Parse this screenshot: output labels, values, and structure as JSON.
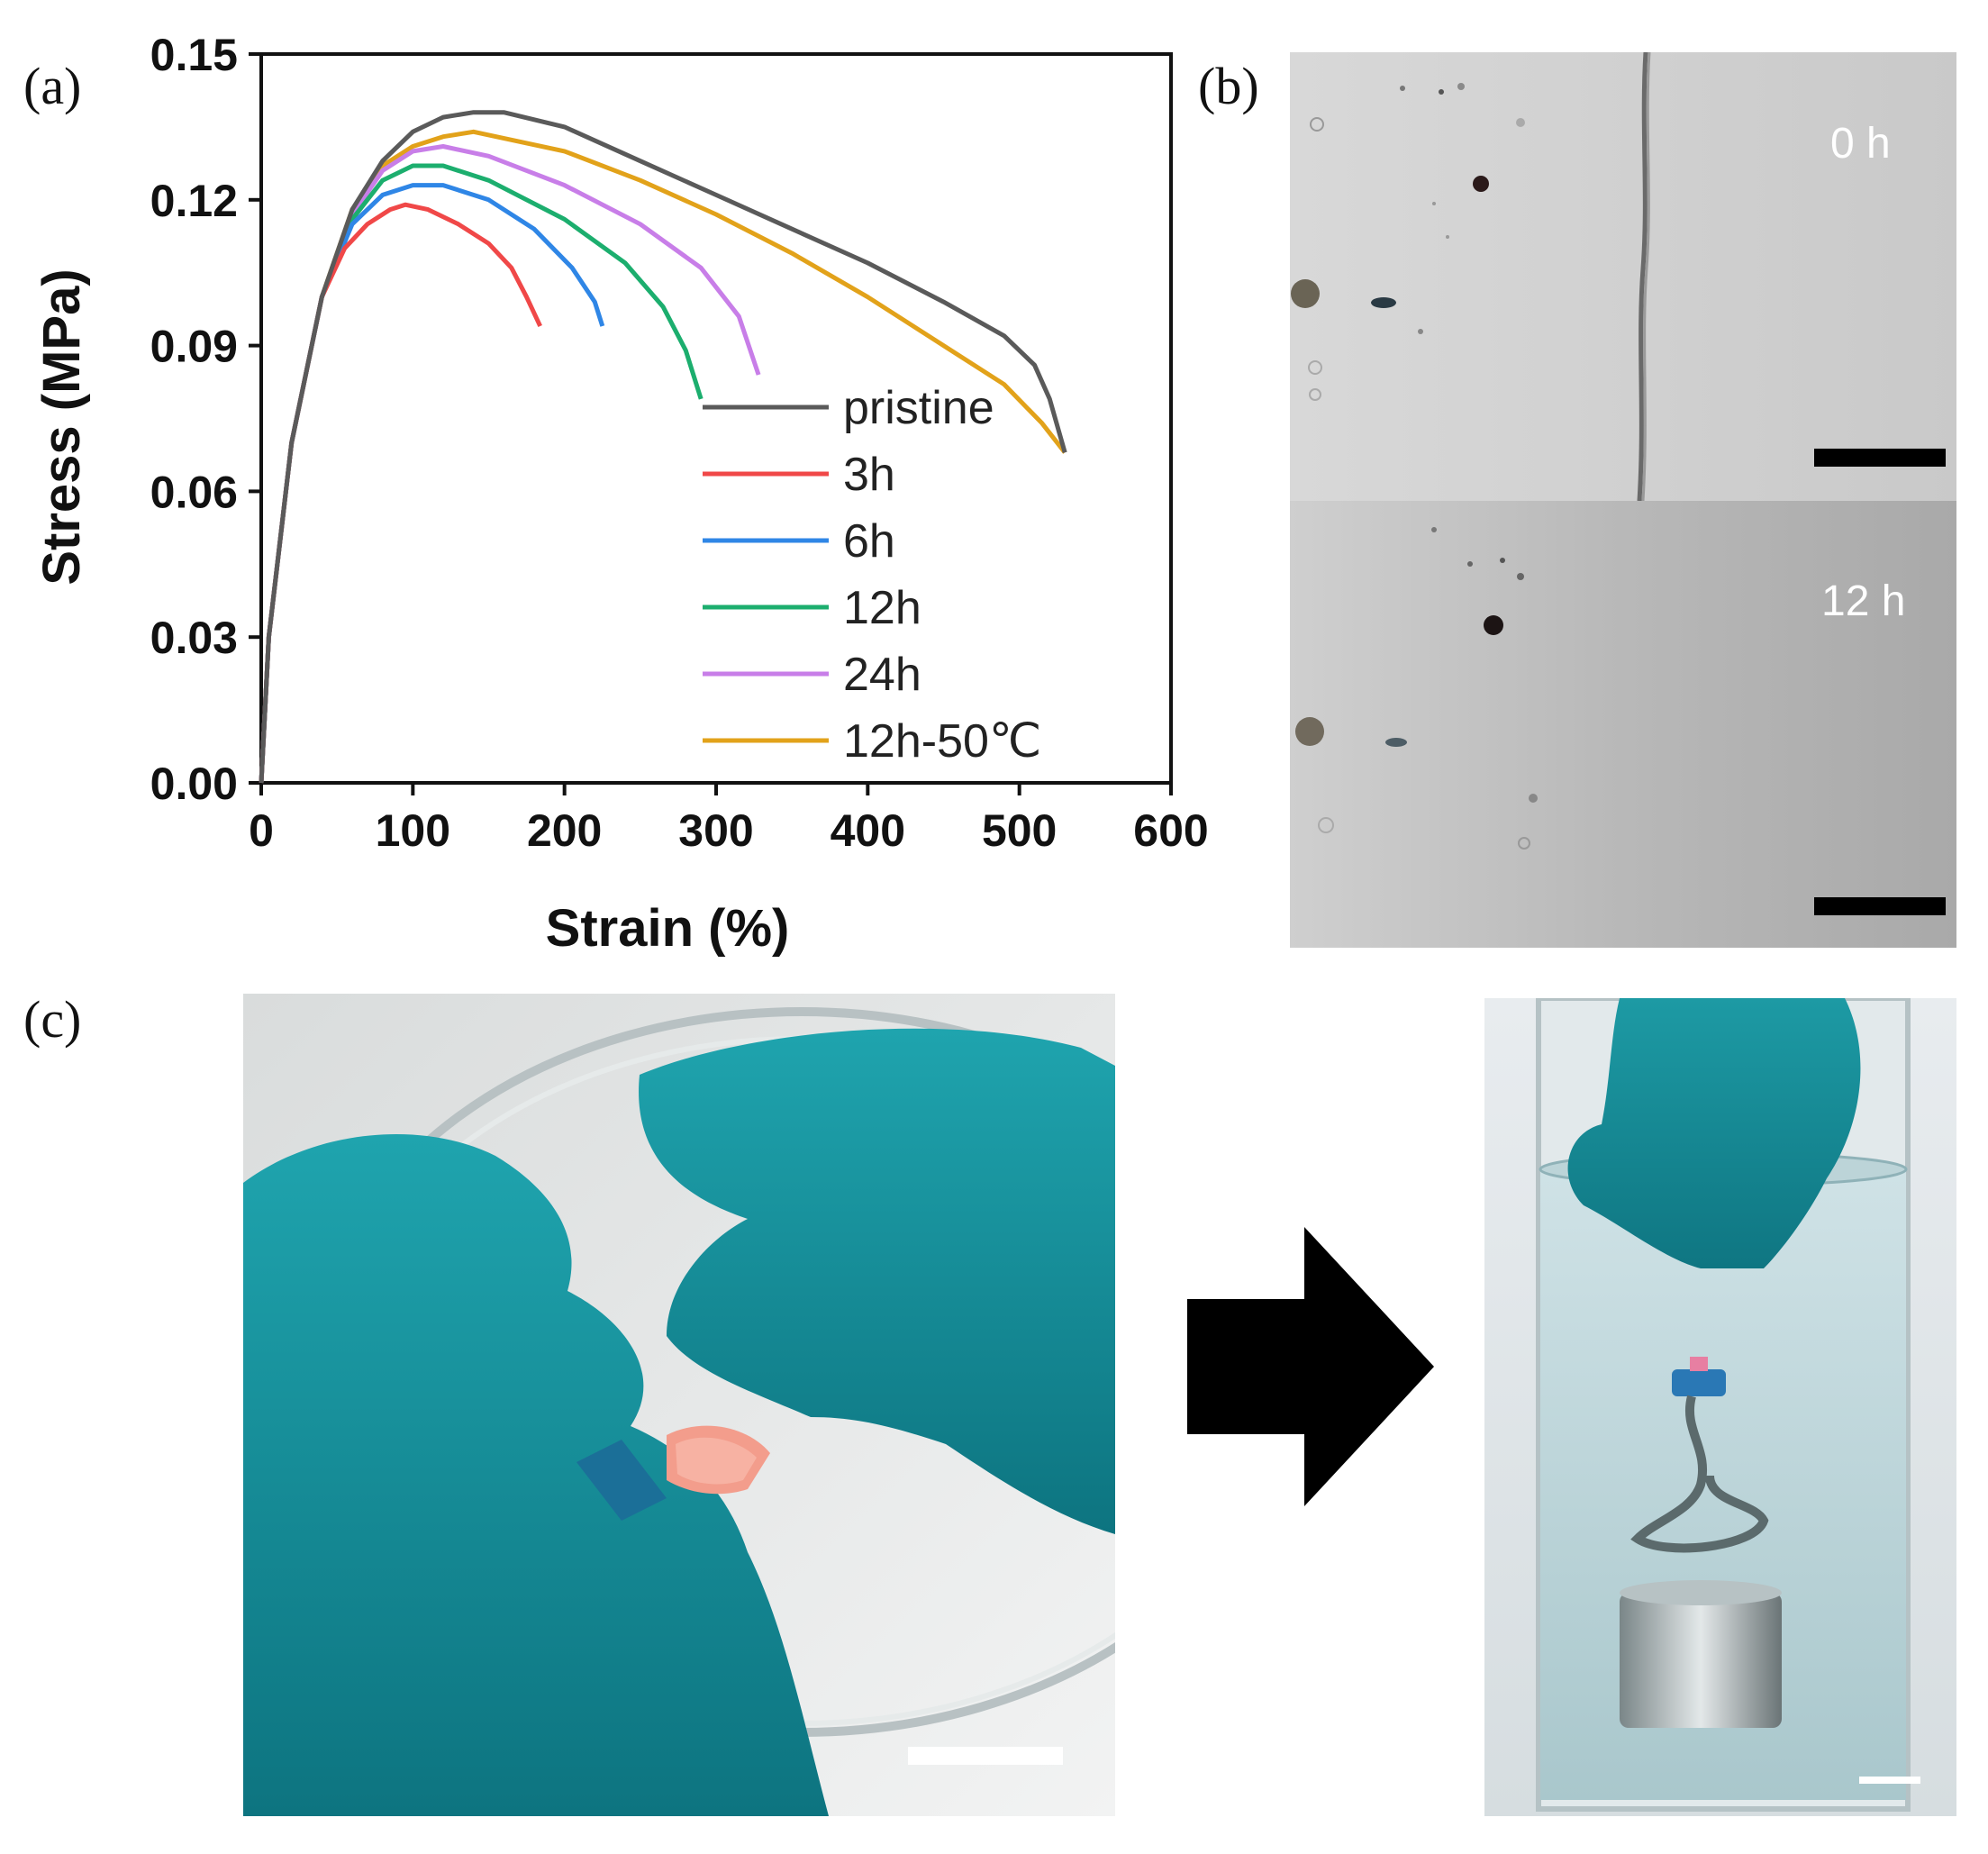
{
  "panels": {
    "a_label": "(a)",
    "b_label": "(b)",
    "c_label": "(c)"
  },
  "chart_data": {
    "type": "line",
    "xlabel": "Strain (%)",
    "ylabel": "Stress (MPa)",
    "xlim": [
      0,
      600
    ],
    "ylim": [
      0,
      0.15
    ],
    "xticks": [
      "0",
      "100",
      "200",
      "300",
      "400",
      "500",
      "600"
    ],
    "yticks": [
      "0.00",
      "0.03",
      "0.06",
      "0.09",
      "0.12",
      "0.15"
    ],
    "legend_position": "bottom-right",
    "series": [
      {
        "name": "pristine",
        "color": "#5a5a5a",
        "x": [
          0,
          5,
          20,
          40,
          60,
          80,
          100,
          120,
          140,
          160,
          200,
          250,
          300,
          350,
          400,
          450,
          490,
          510,
          520,
          530
        ],
        "y": [
          0,
          0.03,
          0.07,
          0.1,
          0.118,
          0.128,
          0.134,
          0.137,
          0.138,
          0.138,
          0.135,
          0.128,
          0.121,
          0.114,
          0.107,
          0.099,
          0.092,
          0.086,
          0.079,
          0.068
        ]
      },
      {
        "name": "3h",
        "color": "#f04848",
        "x": [
          0,
          5,
          20,
          40,
          55,
          70,
          85,
          95,
          110,
          130,
          150,
          165,
          175,
          184
        ],
        "y": [
          0,
          0.03,
          0.07,
          0.1,
          0.11,
          0.115,
          0.118,
          0.119,
          0.118,
          0.115,
          0.111,
          0.106,
          0.1,
          0.094
        ]
      },
      {
        "name": "6h",
        "color": "#2f86e6",
        "x": [
          0,
          5,
          20,
          40,
          60,
          80,
          100,
          120,
          150,
          180,
          205,
          220,
          225
        ],
        "y": [
          0,
          0.03,
          0.07,
          0.1,
          0.115,
          0.121,
          0.123,
          0.123,
          0.12,
          0.114,
          0.106,
          0.099,
          0.094
        ]
      },
      {
        "name": "12h",
        "color": "#1cae6e",
        "x": [
          0,
          5,
          20,
          40,
          60,
          80,
          100,
          120,
          150,
          200,
          240,
          265,
          280,
          290
        ],
        "y": [
          0,
          0.03,
          0.07,
          0.1,
          0.116,
          0.124,
          0.127,
          0.127,
          0.124,
          0.116,
          0.107,
          0.098,
          0.089,
          0.079
        ]
      },
      {
        "name": "24h",
        "color": "#c87ee8",
        "x": [
          0,
          5,
          20,
          40,
          60,
          80,
          100,
          120,
          150,
          200,
          250,
          290,
          315,
          328
        ],
        "y": [
          0,
          0.03,
          0.07,
          0.1,
          0.117,
          0.126,
          0.13,
          0.131,
          0.129,
          0.123,
          0.115,
          0.106,
          0.096,
          0.084
        ]
      },
      {
        "name": "12h-50℃",
        "color": "#e2a21a",
        "x": [
          0,
          5,
          20,
          40,
          60,
          80,
          100,
          120,
          140,
          200,
          250,
          300,
          350,
          400,
          450,
          490,
          515,
          530
        ],
        "y": [
          0,
          0.03,
          0.07,
          0.1,
          0.118,
          0.127,
          0.131,
          0.133,
          0.134,
          0.13,
          0.124,
          0.117,
          0.109,
          0.1,
          0.09,
          0.082,
          0.074,
          0.068
        ]
      }
    ]
  },
  "micrographs": {
    "top_label": "0 h",
    "bottom_label": "12 h"
  }
}
